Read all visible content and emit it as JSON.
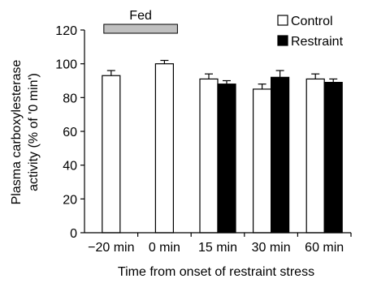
{
  "chart_data": {
    "type": "bar",
    "xlabel": "Time from onset of restraint stress",
    "ylabel": [
      "Plasma carboxylesterase",
      "activity (% of '0 min')"
    ],
    "ylim": [
      0,
      120
    ],
    "yticks": [
      0,
      20,
      40,
      60,
      80,
      100,
      120
    ],
    "categories": [
      "−20 min",
      "0 min",
      "15 min",
      "30 min",
      "60 min"
    ],
    "series": [
      {
        "name": "Control",
        "fill": "#ffffff",
        "values": [
          93,
          100,
          91,
          85,
          91
        ],
        "errors": [
          3,
          2,
          3,
          3,
          3
        ]
      },
      {
        "name": "Restraint",
        "fill": "#000000",
        "values": [
          null,
          null,
          88,
          92,
          89
        ],
        "errors": [
          null,
          null,
          2,
          4,
          2
        ]
      }
    ],
    "legend_position": "top-right",
    "annotation": {
      "label": "Fed",
      "from_category": "−20 min",
      "to_category": "0 min",
      "bar_color": "#c0c0c0"
    },
    "grid": false
  }
}
